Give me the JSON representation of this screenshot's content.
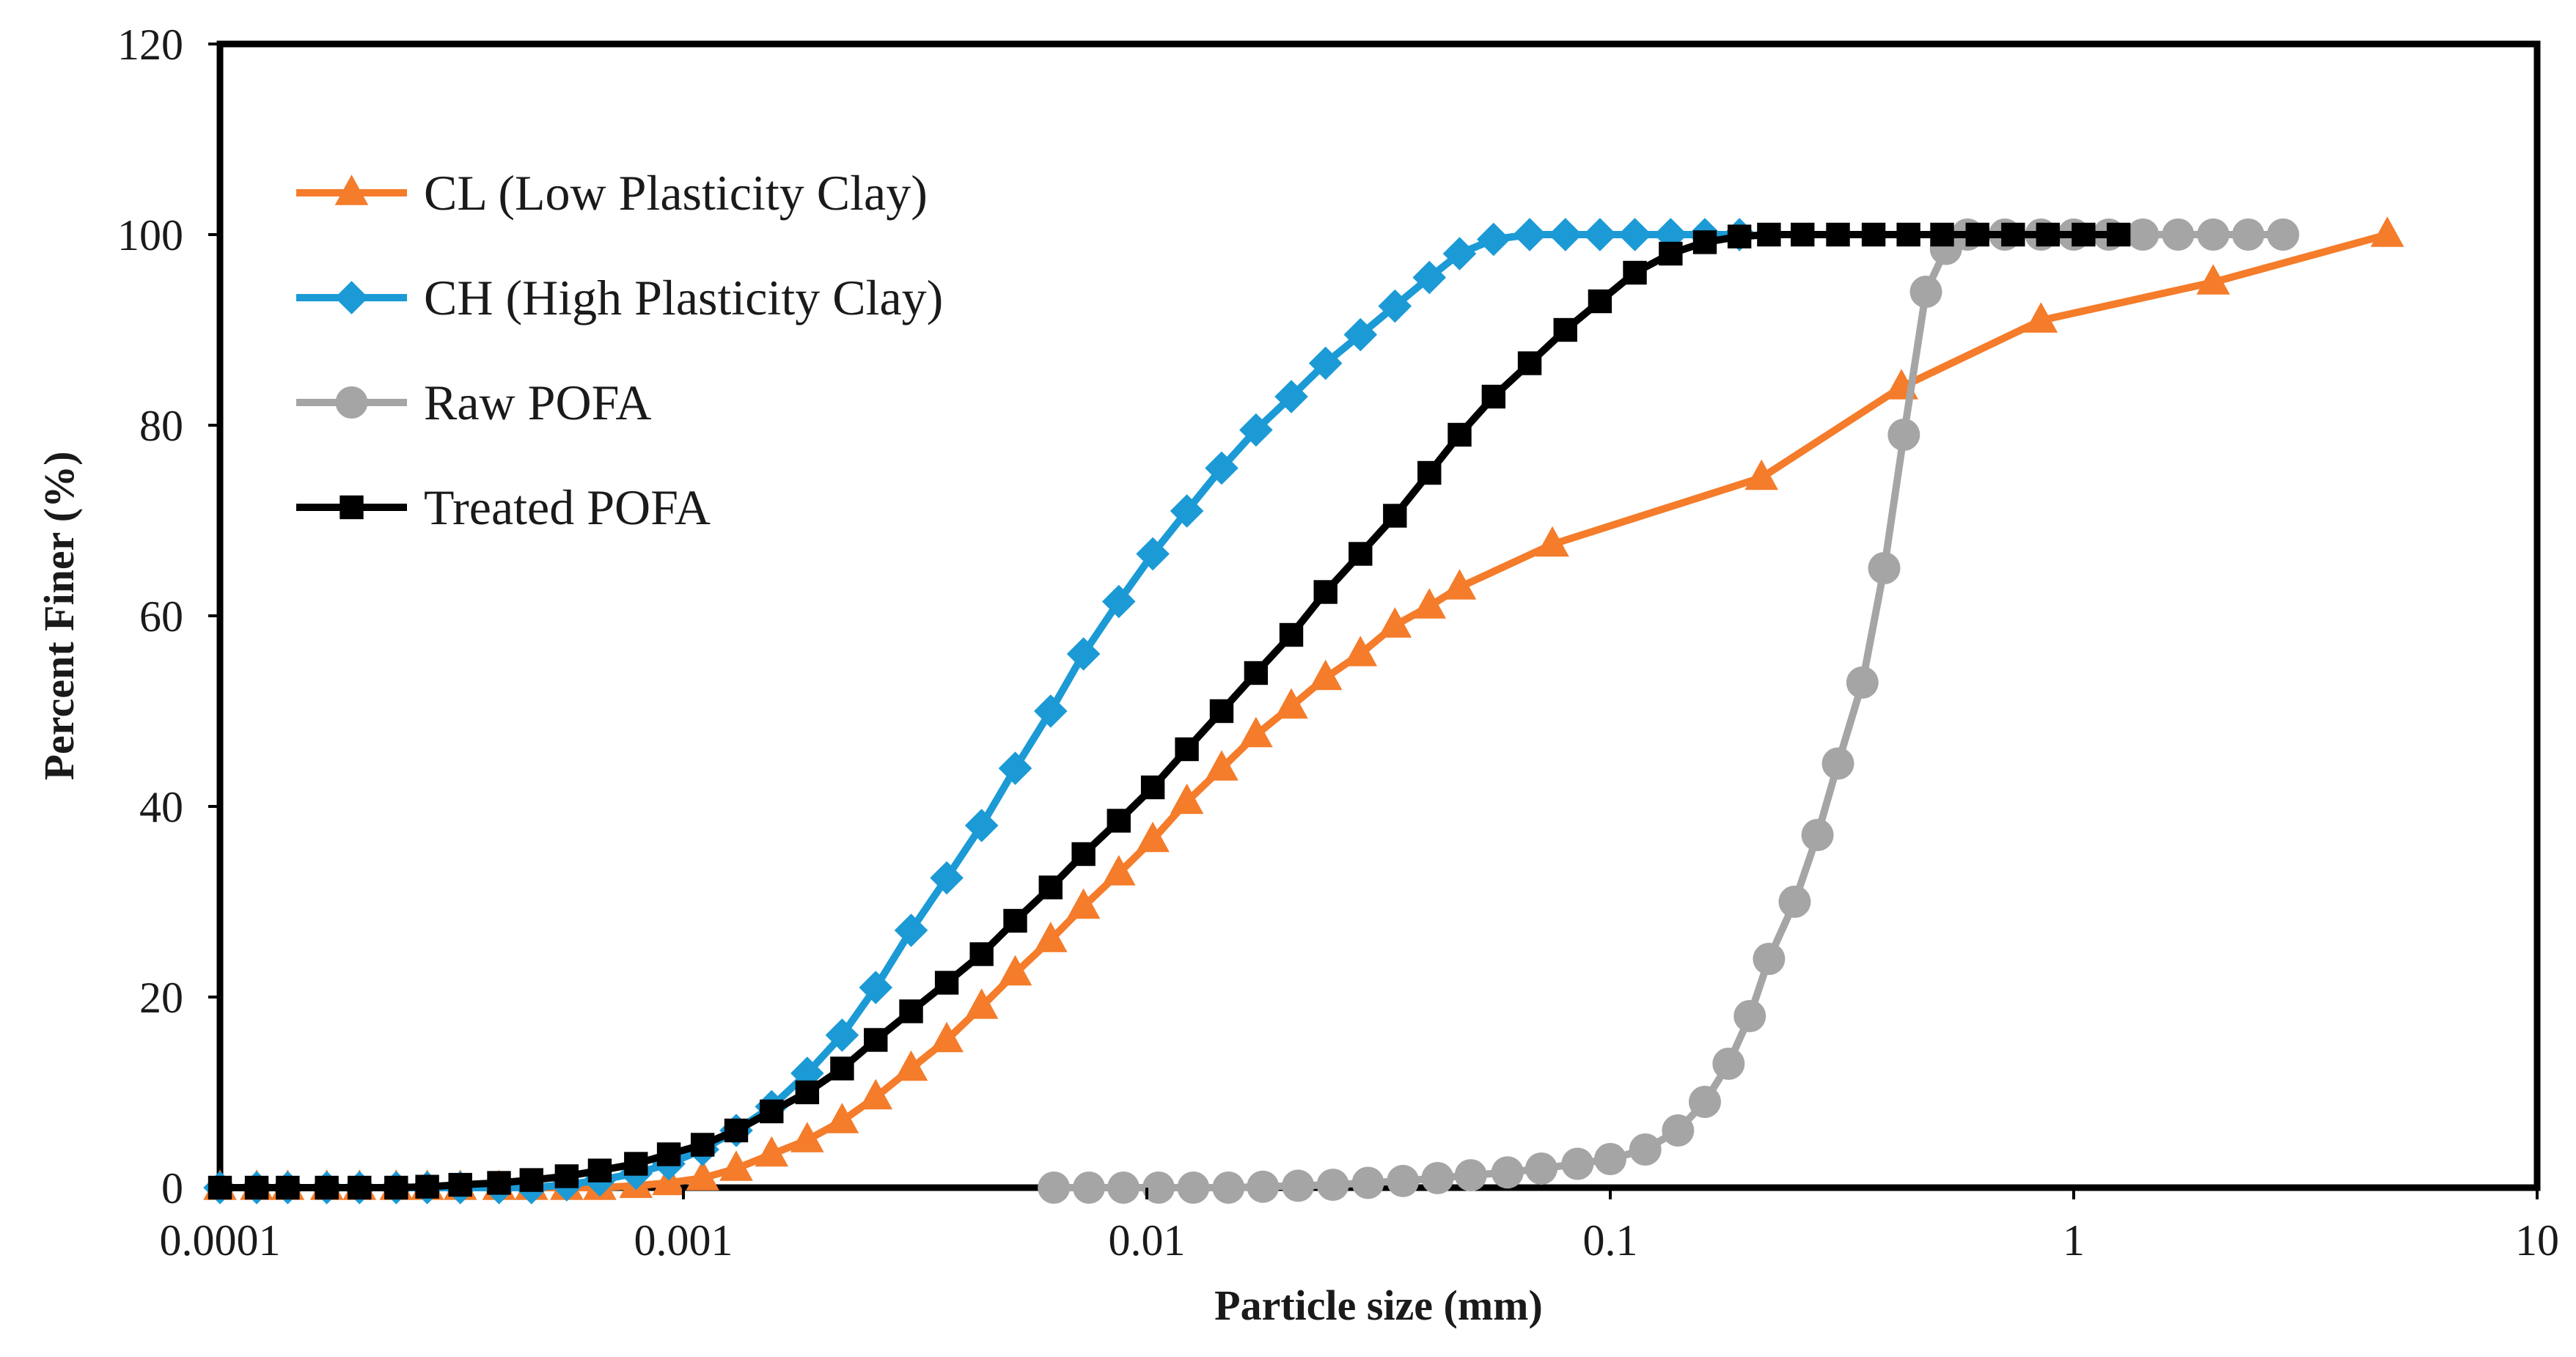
{
  "chart_data": {
    "type": "line",
    "title": "",
    "xlabel": "Particle size (mm)",
    "ylabel": "Percent Finer (%)",
    "xscale": "log",
    "xlim": [
      0.0001,
      10
    ],
    "ylim": [
      0,
      120
    ],
    "x_ticks": [
      0.0001,
      0.001,
      0.01,
      0.1,
      1,
      10
    ],
    "x_tick_labels": [
      "0.0001",
      "0.001",
      "0.01",
      "0.1",
      "1",
      "10"
    ],
    "y_ticks": [
      0,
      20,
      40,
      60,
      80,
      100,
      120
    ],
    "y_tick_labels": [
      "0",
      "20",
      "40",
      "60",
      "80",
      "100",
      "120"
    ],
    "grid": false,
    "legend_position": "top-left",
    "series": [
      {
        "name": "CL (Low Plasticity Clay)",
        "color": "#f47c2a",
        "marker": "triangle",
        "x": [
          0.0001,
          0.00012,
          0.00014,
          0.00017,
          0.0002,
          0.00024,
          0.00028,
          0.00033,
          0.0004,
          0.00047,
          0.00056,
          0.00066,
          0.00079,
          0.00093,
          0.0011,
          0.0013,
          0.00155,
          0.00185,
          0.0022,
          0.0026,
          0.0031,
          0.0037,
          0.0044,
          0.0052,
          0.0062,
          0.0073,
          0.0087,
          0.0103,
          0.0122,
          0.0145,
          0.0172,
          0.0205,
          0.0243,
          0.0289,
          0.0343,
          0.0407,
          0.0473,
          0.075,
          0.212,
          0.425,
          0.85,
          2.0,
          4.75
        ],
        "y": [
          0,
          0,
          0,
          0,
          0,
          0,
          0,
          0,
          0,
          0,
          0,
          0,
          0.2,
          0.5,
          1,
          2,
          3.5,
          5,
          7,
          9.5,
          12.5,
          15.5,
          19,
          22.5,
          26,
          29.5,
          33,
          36.5,
          40.5,
          44,
          47.5,
          50.5,
          53.5,
          56,
          59,
          61,
          63,
          67.5,
          74.5,
          84,
          91,
          95,
          100
        ]
      },
      {
        "name": "CH (High Plasticity Clay)",
        "color": "#1b9ad6",
        "marker": "diamond",
        "x": [
          0.0001,
          0.00012,
          0.00014,
          0.00017,
          0.0002,
          0.00024,
          0.00028,
          0.00033,
          0.0004,
          0.00047,
          0.00056,
          0.00066,
          0.00079,
          0.00093,
          0.0011,
          0.0013,
          0.00155,
          0.00185,
          0.0022,
          0.0026,
          0.0031,
          0.0037,
          0.0044,
          0.0052,
          0.0062,
          0.0073,
          0.0087,
          0.0103,
          0.0122,
          0.0145,
          0.0172,
          0.0205,
          0.0243,
          0.0289,
          0.0343,
          0.0407,
          0.0473,
          0.056,
          0.067,
          0.08,
          0.095,
          0.113,
          0.135,
          0.16,
          0.19
        ],
        "y": [
          0,
          0,
          0,
          0,
          0,
          0,
          0,
          0,
          0,
          0,
          0.3,
          0.8,
          1.5,
          2.5,
          4,
          6,
          8.5,
          12,
          16,
          21,
          27,
          32.5,
          38,
          44,
          50,
          56,
          61.5,
          66.5,
          71,
          75.5,
          79.5,
          83,
          86.5,
          89.5,
          92.5,
          95.5,
          98,
          99.5,
          100,
          100,
          100,
          100,
          100,
          100,
          100
        ]
      },
      {
        "name": "Raw POFA",
        "color": "#a5a5a5",
        "marker": "circle",
        "x": [
          0.0063,
          0.0075,
          0.0089,
          0.0106,
          0.0126,
          0.015,
          0.0178,
          0.0212,
          0.0252,
          0.03,
          0.0357,
          0.0424,
          0.05,
          0.06,
          0.071,
          0.085,
          0.1,
          0.119,
          0.14,
          0.16,
          0.18,
          0.2,
          0.22,
          0.25,
          0.28,
          0.31,
          0.35,
          0.39,
          0.43,
          0.48,
          0.53,
          0.59,
          0.71,
          0.85,
          1.0,
          1.19,
          1.41,
          1.68,
          2.0,
          2.38,
          2.83
        ],
        "y": [
          0,
          0,
          0,
          0,
          0,
          0,
          0.1,
          0.2,
          0.3,
          0.5,
          0.7,
          1,
          1.3,
          1.6,
          2,
          2.5,
          3,
          4,
          6,
          9,
          13,
          18,
          24,
          30,
          37,
          44.5,
          53,
          65,
          79,
          94,
          98.5,
          100,
          100,
          100,
          100,
          100,
          100,
          100,
          100,
          100,
          100
        ]
      },
      {
        "name": "Treated POFA",
        "color": "#000000",
        "marker": "square",
        "x": [
          0.0001,
          0.00012,
          0.00014,
          0.00017,
          0.0002,
          0.00024,
          0.00028,
          0.00033,
          0.0004,
          0.00047,
          0.00056,
          0.00066,
          0.00079,
          0.00093,
          0.0011,
          0.0013,
          0.00155,
          0.00185,
          0.0022,
          0.0026,
          0.0031,
          0.0037,
          0.0044,
          0.0052,
          0.0062,
          0.0073,
          0.0087,
          0.0103,
          0.0122,
          0.0145,
          0.0172,
          0.0205,
          0.0243,
          0.0289,
          0.0343,
          0.0407,
          0.0473,
          0.056,
          0.067,
          0.08,
          0.095,
          0.113,
          0.135,
          0.16,
          0.19,
          0.22,
          0.26,
          0.31,
          0.37,
          0.44,
          0.52,
          0.62,
          0.74,
          0.88,
          1.05,
          1.25
        ],
        "y": [
          0,
          0,
          0,
          0,
          0,
          0,
          0.1,
          0.3,
          0.5,
          0.8,
          1.2,
          1.8,
          2.5,
          3.5,
          4.5,
          6,
          8,
          10,
          12.5,
          15.5,
          18.5,
          21.5,
          24.5,
          28,
          31.5,
          35,
          38.5,
          42,
          46,
          50,
          54,
          58,
          62.5,
          66.5,
          70.5,
          75,
          79,
          83,
          86.5,
          90,
          93,
          96,
          98,
          99.2,
          99.8,
          100,
          100,
          100,
          100,
          100,
          100,
          100,
          100,
          100,
          100,
          100
        ]
      }
    ]
  }
}
